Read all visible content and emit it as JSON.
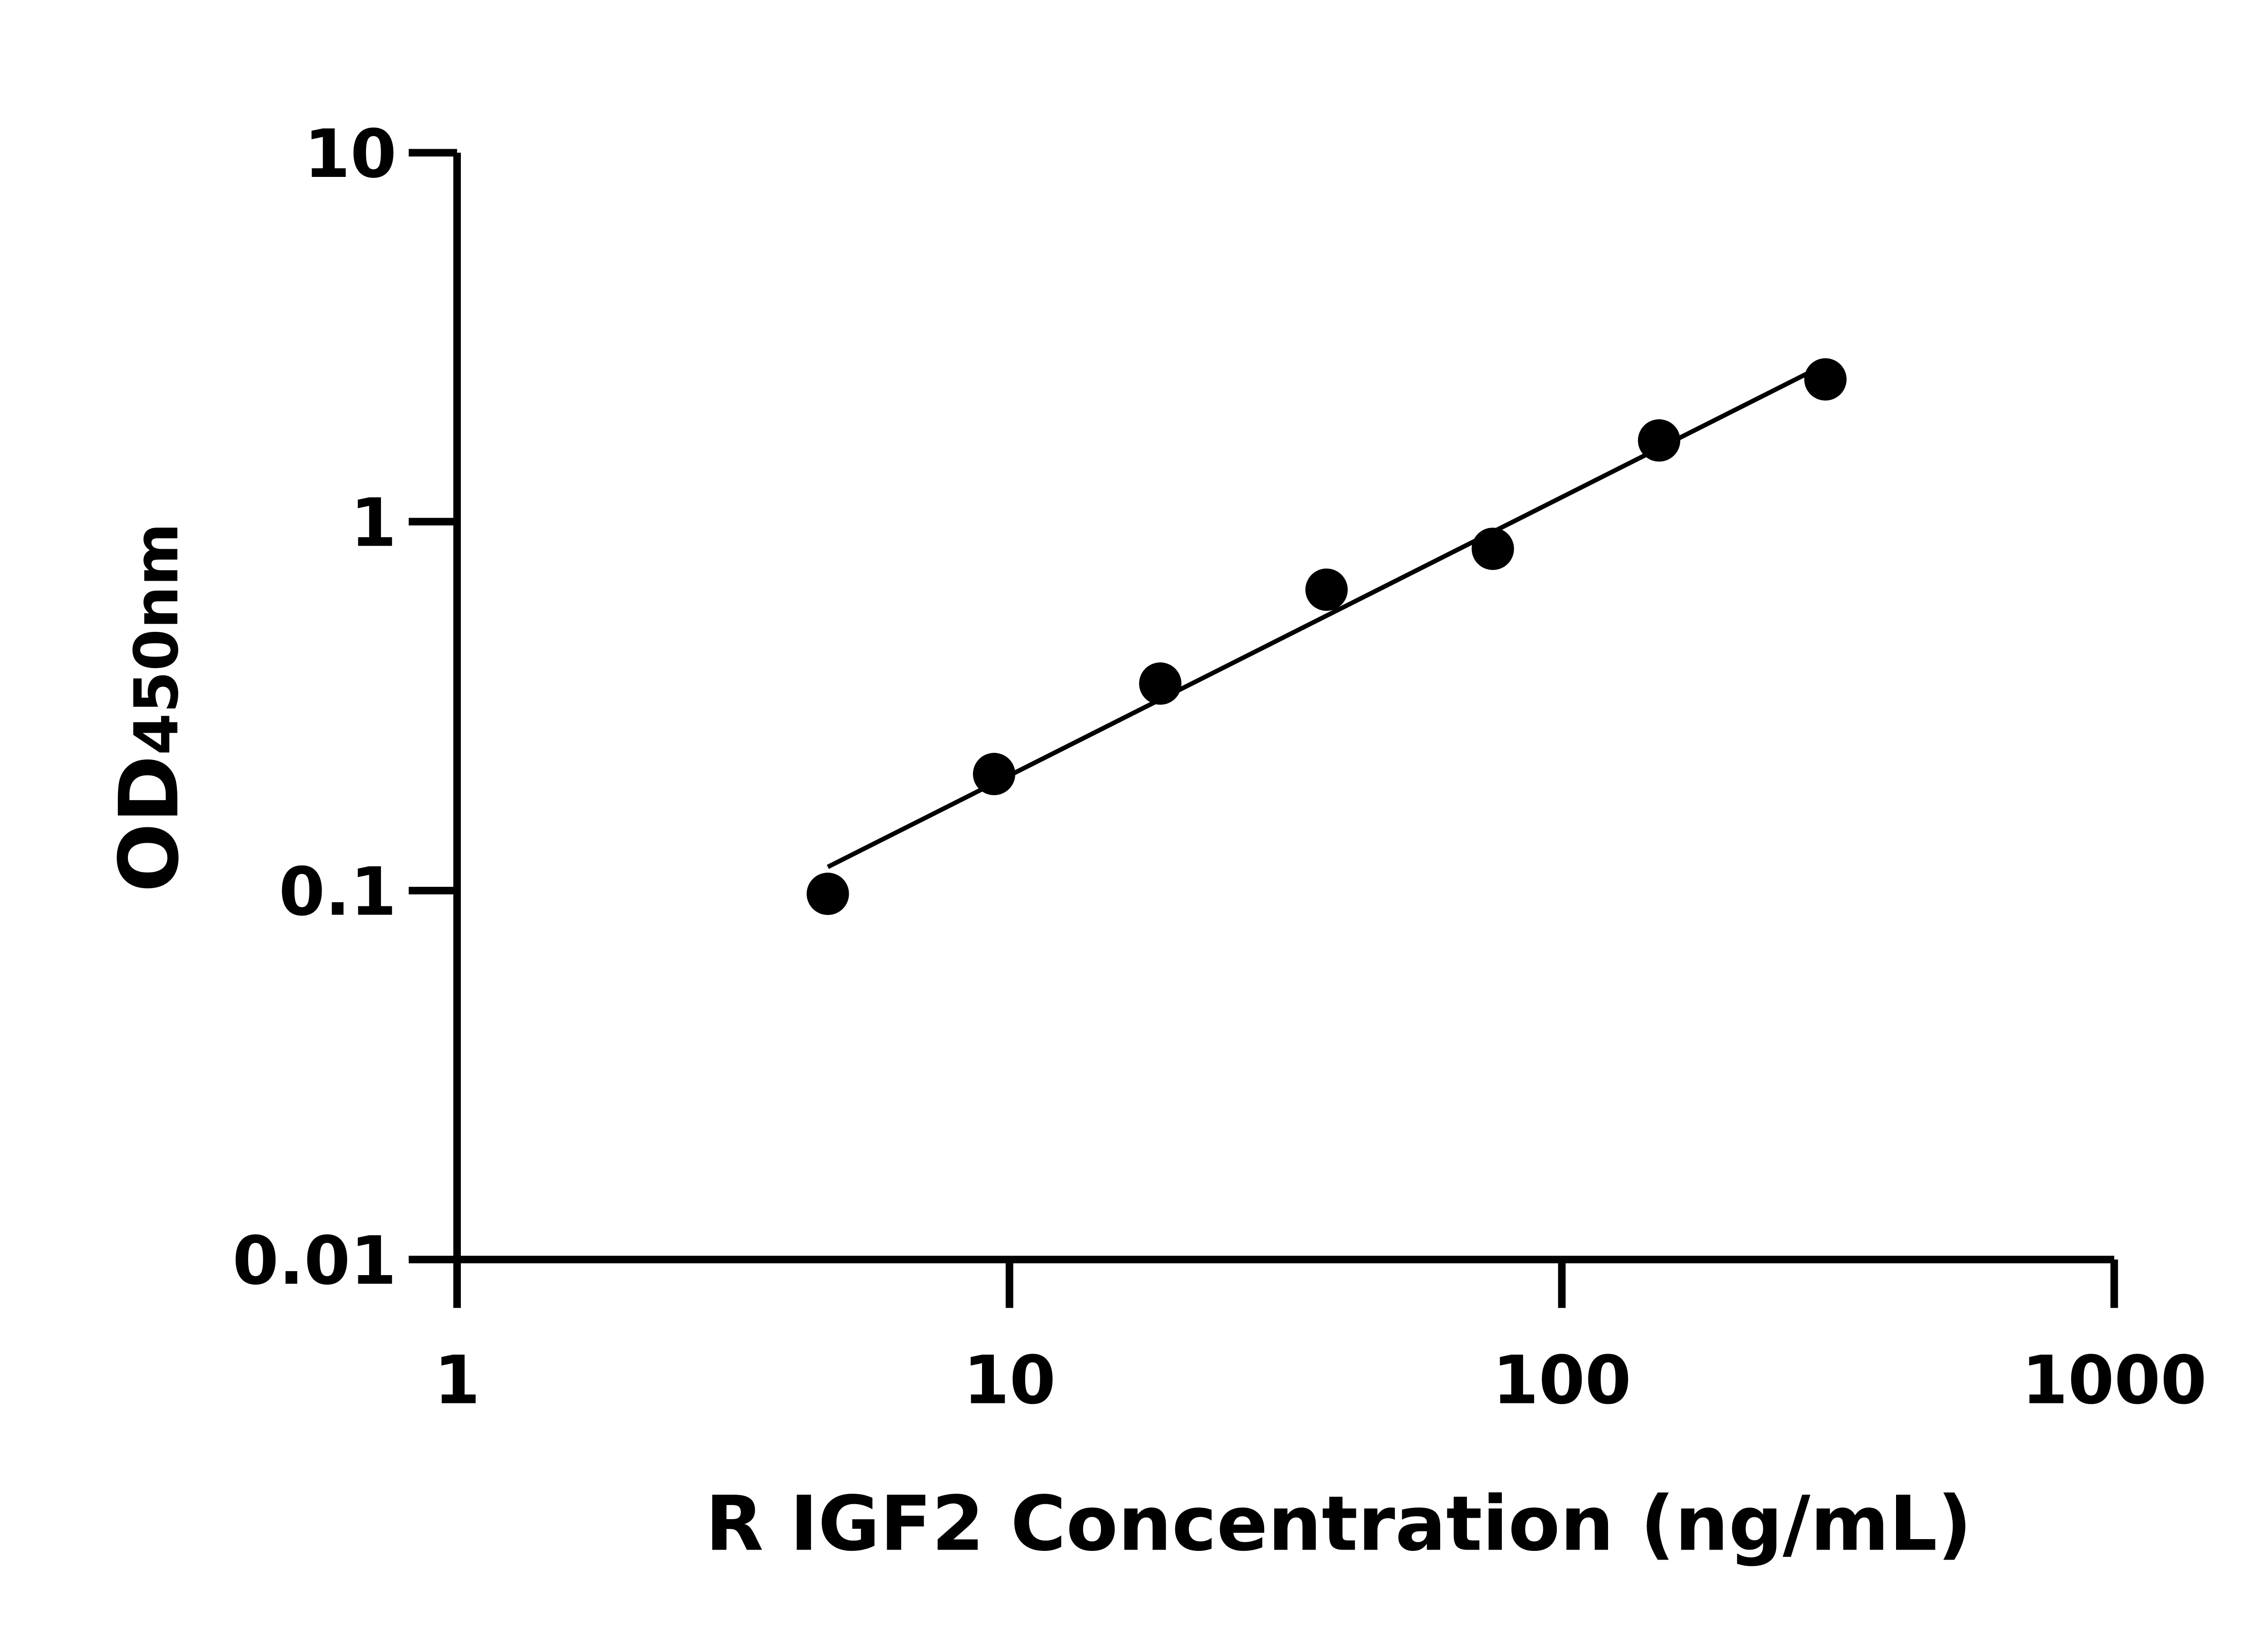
{
  "chart_data": {
    "type": "scatter",
    "title": "",
    "xlabel": "R IGF2 Concentration (ng/mL)",
    "ylabel_main": "OD",
    "ylabel_sub": "450nm",
    "xscale": "log",
    "yscale": "log",
    "xlim": [
      1,
      1000
    ],
    "ylim": [
      0.01,
      10
    ],
    "xticks": [
      "1",
      "10",
      "100",
      "1000"
    ],
    "yticks": [
      "0.01",
      "0.1",
      "1",
      "10"
    ],
    "grid": false,
    "legend": "none",
    "fit_line": true,
    "marker_color": "#000000",
    "line_color": "#000000",
    "x": [
      4.69,
      9.38,
      18.75,
      37.5,
      75,
      150,
      300
    ],
    "y": [
      0.098,
      0.207,
      0.364,
      0.654,
      0.844,
      1.66,
      2.43
    ]
  }
}
